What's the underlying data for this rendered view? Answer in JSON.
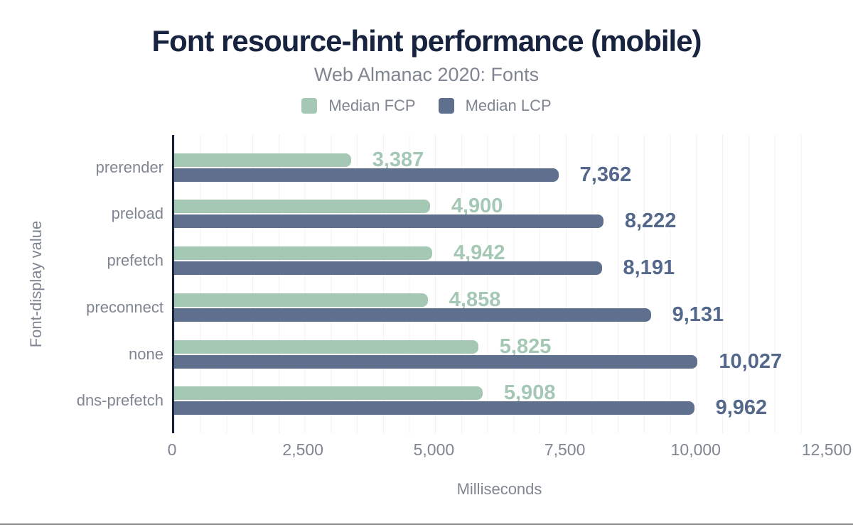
{
  "chart_data": {
    "type": "bar",
    "orientation": "horizontal",
    "title": "Font resource-hint performance (mobile)",
    "subtitle": "Web Almanac 2020: Fonts",
    "xlabel": "Milliseconds",
    "ylabel": "Font-display value",
    "categories": [
      "prerender",
      "preload",
      "prefetch",
      "preconnect",
      "none",
      "dns-prefetch"
    ],
    "series": [
      {
        "name": "Median FCP",
        "values": [
          3387,
          4900,
          4942,
          4858,
          5825,
          5908
        ],
        "formatted_values": [
          "3,387",
          "4,900",
          "4,942",
          "4,858",
          "5,825",
          "5,908"
        ],
        "color": "#a5c8b4",
        "value_label_color": "#a5c8b4"
      },
      {
        "name": "Median LCP",
        "values": [
          7362,
          8222,
          8191,
          9131,
          10027,
          9962
        ],
        "formatted_values": [
          "7,362",
          "8,222",
          "8,191",
          "9,131",
          "10,027",
          "9,962"
        ],
        "color": "#5e708e",
        "value_label_color": "#54688c"
      }
    ],
    "xlim": [
      0,
      12500
    ],
    "xticks": [
      0,
      2500,
      5000,
      7500,
      10000,
      12500
    ],
    "xtick_labels": [
      "0",
      "2,500",
      "5,000",
      "7,500",
      "10,000",
      "12,500"
    ],
    "minor_gridline_interval": 500,
    "grid": true,
    "legend_position": "top"
  },
  "colors": {
    "title": "#17233f",
    "muted_text": "#7f8691",
    "gridline": "#f1f1f4",
    "axis_line": "#15233d",
    "bottom_rule": "#8f8f8f",
    "background": "#ffffff"
  }
}
